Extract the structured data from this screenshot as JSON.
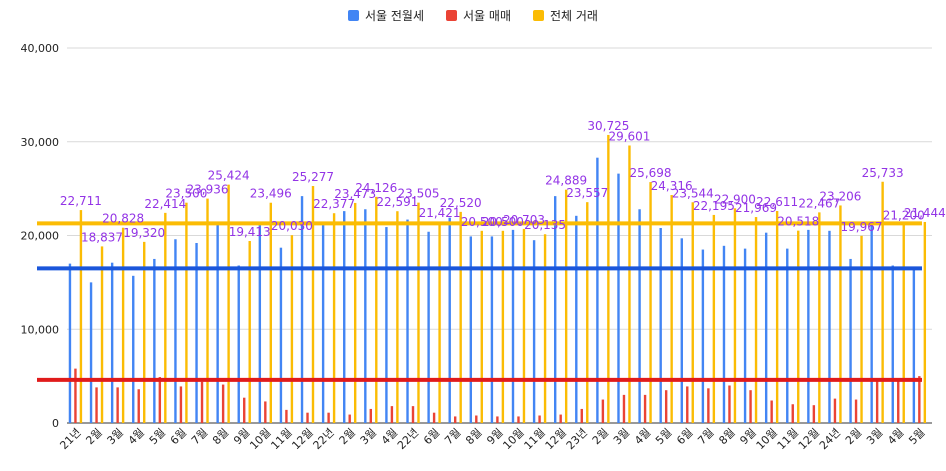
{
  "chart_data": {
    "type": "bar",
    "title": "",
    "xlabel": "",
    "ylabel": "",
    "ylim": [
      0,
      40000
    ],
    "yticks": [
      0,
      10000,
      20000,
      30000,
      40000
    ],
    "ytick_labels": [
      "0",
      "10,000",
      "20,000",
      "30,000",
      "40,000"
    ],
    "grid": true,
    "legend_position": "top",
    "categories": [
      "21년",
      "2월",
      "3월",
      "4월",
      "5월",
      "6월",
      "7월",
      "8월",
      "9월",
      "10월",
      "11월",
      "12월",
      "22년",
      "2월",
      "3월",
      "4월",
      "22년",
      "6월",
      "7월",
      "8월",
      "9월",
      "10월",
      "11월",
      "12월",
      "23년",
      "2월",
      "3월",
      "4월",
      "5월",
      "6월",
      "7월",
      "8월",
      "9월",
      "10월",
      "11월",
      "12월",
      "24년",
      "2월",
      "3월",
      "4월",
      "5월"
    ],
    "series": [
      {
        "name": "서울 전월세",
        "color": "#4285f4",
        "values": [
          17000,
          15000,
          17100,
          15700,
          17500,
          19600,
          19200,
          21400,
          16800,
          21100,
          18700,
          24200,
          21200,
          22600,
          22800,
          20900,
          21700,
          20400,
          21900,
          19900,
          19900,
          20600,
          19500,
          24200,
          22100,
          28300,
          26600,
          22800,
          20800,
          19700,
          18500,
          18900,
          18600,
          20300,
          18600,
          20600,
          20500,
          17500,
          21200,
          16800,
          16600
        ]
      },
      {
        "name": "서울 매매",
        "color": "#ea4335",
        "values": [
          5800,
          3800,
          3800,
          3600,
          4900,
          3900,
          4400,
          4100,
          2700,
          2300,
          1400,
          1100,
          1100,
          900,
          1500,
          1800,
          1800,
          1100,
          700,
          800,
          700,
          700,
          800,
          900,
          1500,
          2500,
          3000,
          3000,
          3500,
          3900,
          3700,
          4000,
          3500,
          2400,
          2000,
          1900,
          2600,
          2500,
          4500,
          4600,
          5000
        ]
      },
      {
        "name": "전체 거래",
        "color": "#fbbc04",
        "values": [
          22711,
          18837,
          20828,
          19320,
          22414,
          23500,
          23936,
          25424,
          19413,
          23496,
          20030,
          25277,
          22377,
          23473,
          24126,
          22591,
          23505,
          21421,
          22520,
          20500,
          20500,
          20703,
          20135,
          24889,
          23557,
          30725,
          29601,
          25698,
          24316,
          23544,
          22195,
          22900,
          21969,
          22611,
          20518,
          22467,
          23206,
          19967,
          25733,
          21200,
          21444
        ],
        "labels": [
          "22,711",
          "18,837",
          "20,828",
          "19,320",
          "22,414",
          "23,500",
          "23,936",
          "25,424",
          "19,413",
          "23,496",
          "20,030",
          "25,277",
          "22,377",
          "23,473",
          "24,126",
          "22,591",
          "23,505",
          "21,421",
          "22,520",
          "20,500",
          "20,500",
          "20,703",
          "20,135",
          "24,889",
          "23,557",
          "30,725",
          "29,601",
          "25,698",
          "24,316",
          "23,544",
          "22,195",
          "22,900",
          "21,969",
          "22,611",
          "20,518",
          "22,467",
          "23,206",
          "19,967",
          "25,733",
          "21,200",
          "21,444"
        ]
      }
    ],
    "reference_lines": [
      {
        "series": "서울 전월세",
        "value": 16500,
        "color": "#1a56db"
      },
      {
        "series": "서울 매매",
        "value": 4600,
        "color": "#e01b1b"
      },
      {
        "series": "전체 거래",
        "value": 21300,
        "color": "#fbbc04"
      }
    ],
    "label_color": "#9334e6"
  }
}
